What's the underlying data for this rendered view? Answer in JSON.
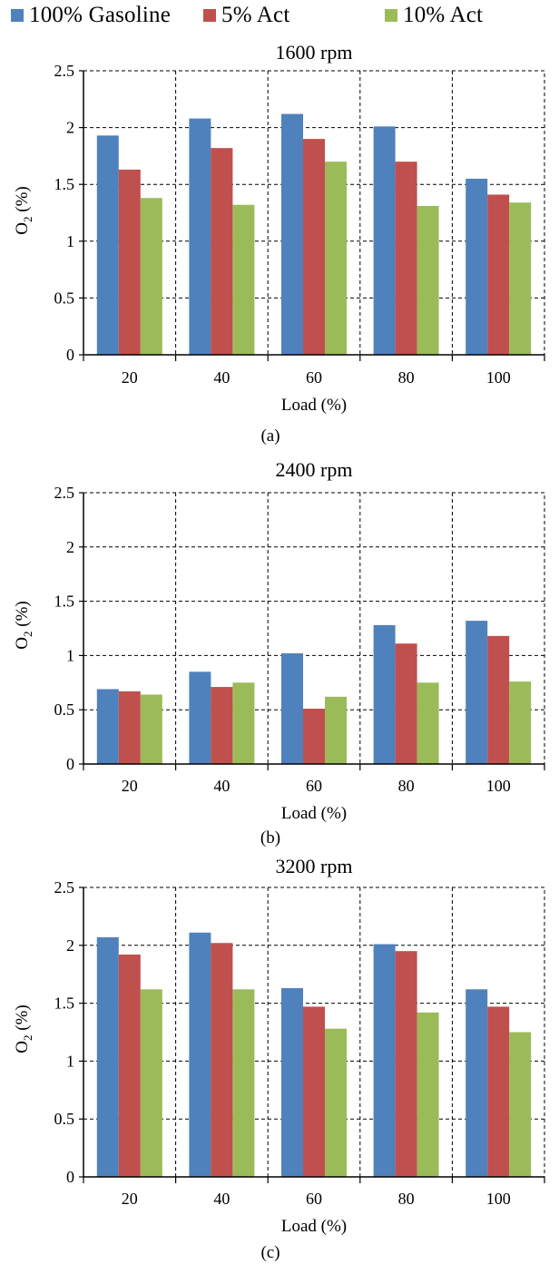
{
  "legend": [
    {
      "name": "100% Gasoline",
      "color": "#4F81BD"
    },
    {
      "name": "5% Act",
      "color": "#C0504D"
    },
    {
      "name": "10% Act",
      "color": "#9BBB59"
    }
  ],
  "chart_data": [
    {
      "type": "bar",
      "title": "1600 rpm",
      "caption": "(a)",
      "xlabel": "Load (%)",
      "ylabel": "O2 (%)",
      "categories": [
        "20",
        "40",
        "60",
        "80",
        "100"
      ],
      "ylim": [
        0,
        2.5
      ],
      "yticks": [
        "0",
        "0.5",
        "1",
        "1.5",
        "2",
        "2.5"
      ],
      "grid": true,
      "series": [
        {
          "name": "100% Gasoline",
          "values": [
            1.93,
            2.08,
            2.12,
            2.01,
            1.55
          ]
        },
        {
          "name": "5% Act",
          "values": [
            1.63,
            1.82,
            1.9,
            1.7,
            1.41
          ]
        },
        {
          "name": "10% Act",
          "values": [
            1.38,
            1.32,
            1.7,
            1.31,
            1.34
          ]
        }
      ]
    },
    {
      "type": "bar",
      "title": "2400 rpm",
      "caption": "(b)",
      "xlabel": "Load (%)",
      "ylabel": "O2 (%)",
      "categories": [
        "20",
        "40",
        "60",
        "80",
        "100"
      ],
      "ylim": [
        0,
        2.5
      ],
      "yticks": [
        "0",
        "0.5",
        "1",
        "1.5",
        "2",
        "2.5"
      ],
      "grid": true,
      "series": [
        {
          "name": "100% Gasoline",
          "values": [
            0.69,
            0.85,
            1.02,
            1.28,
            1.32
          ]
        },
        {
          "name": "5% Act",
          "values": [
            0.67,
            0.71,
            0.51,
            1.11,
            1.18
          ]
        },
        {
          "name": "10% Act",
          "values": [
            0.64,
            0.75,
            0.62,
            0.75,
            0.76
          ]
        }
      ]
    },
    {
      "type": "bar",
      "title": "3200 rpm",
      "caption": "(c)",
      "xlabel": "Load (%)",
      "ylabel": "O2 (%)",
      "categories": [
        "20",
        "40",
        "60",
        "80",
        "100"
      ],
      "ylim": [
        0,
        2.5
      ],
      "yticks": [
        "0",
        "0.5",
        "1",
        "1.5",
        "2",
        "2.5"
      ],
      "grid": true,
      "series": [
        {
          "name": "100% Gasoline",
          "values": [
            2.07,
            2.11,
            1.63,
            2.01,
            1.62
          ]
        },
        {
          "name": "5% Act",
          "values": [
            1.92,
            2.02,
            1.47,
            1.95,
            1.47
          ]
        },
        {
          "name": "10% Act",
          "values": [
            1.62,
            1.62,
            1.28,
            1.42,
            1.25
          ]
        }
      ]
    }
  ]
}
